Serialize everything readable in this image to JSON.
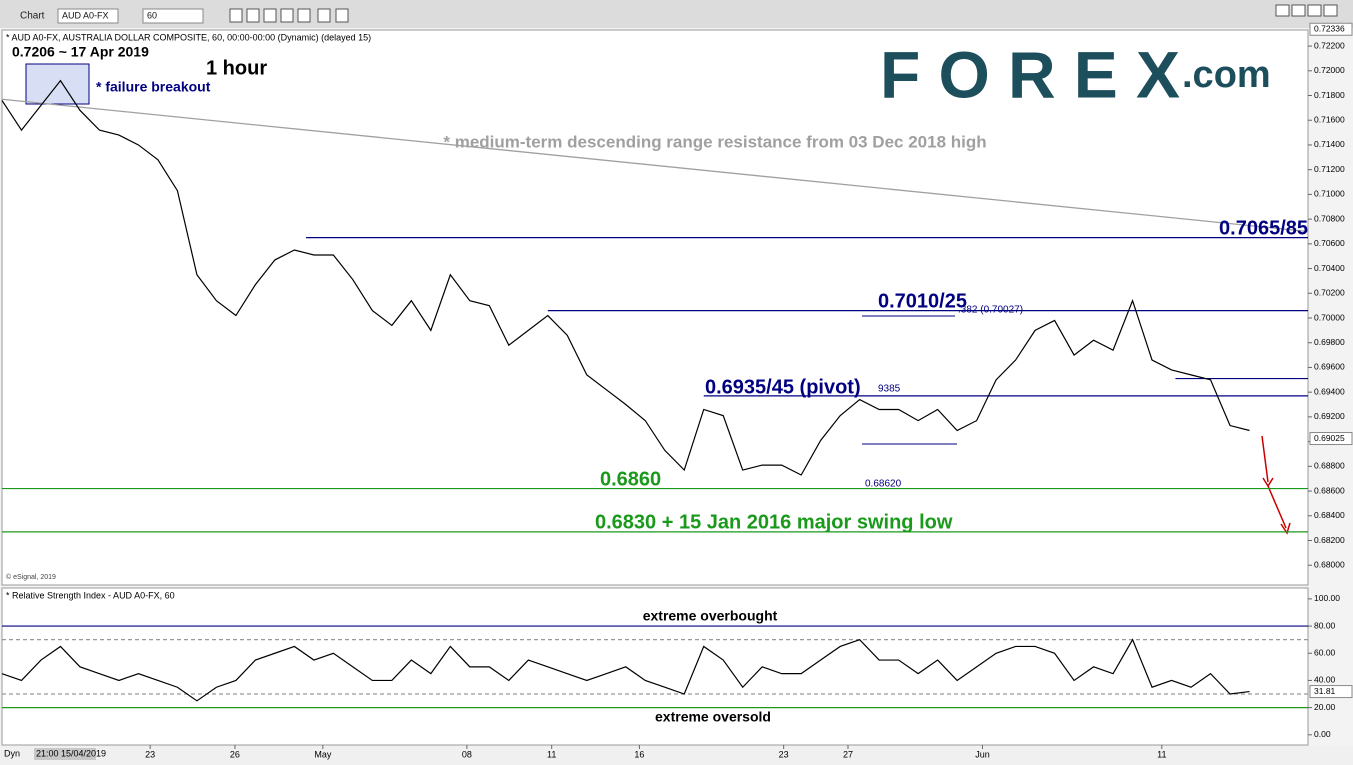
{
  "window": {
    "title": "Chart",
    "symbol": "AUD A0-FX",
    "interval": "60",
    "footer_mode": "Dyn",
    "footer_time": "21:00 15/04/2019"
  },
  "chart_data": [
    {
      "type": "line",
      "title": "* AUD A0-FX, AUSTRALIA DOLLAR COMPOSITE, 60, 00:00-00:00 (Dynamic) (delayed 15)",
      "source": "© eSignal, 2019",
      "logo": "FOREX",
      "logo_suffix": ".com",
      "annotations": [
        "0.7206 ~ 17 Apr 2019",
        "1 hour",
        "* failure breakout"
      ],
      "fib_labels": [
        ".382 (0.70027)",
        "9385",
        "0.68620"
      ],
      "series": [
        {
          "name": "AUD A0-FX",
          "color": "#000000",
          "values": [
            0.7176,
            0.7152,
            0.7172,
            0.7192,
            0.7168,
            0.7152,
            0.7148,
            0.714,
            0.7128,
            0.7103,
            0.7035,
            0.7014,
            0.7002,
            0.7027,
            0.7047,
            0.7055,
            0.7051,
            0.7051,
            0.7031,
            0.7006,
            0.6994,
            0.7014,
            0.699,
            0.7035,
            0.7014,
            0.701,
            0.6978,
            0.699,
            0.7002,
            0.6986,
            0.6954,
            0.6942,
            0.693,
            0.6917,
            0.6893,
            0.6877,
            0.6926,
            0.6921,
            0.6877,
            0.6881,
            0.6881,
            0.6873,
            0.6901,
            0.6921,
            0.6934,
            0.6926,
            0.6926,
            0.6917,
            0.6926,
            0.6909,
            0.6917,
            0.695,
            0.6966,
            0.699,
            0.6998,
            0.697,
            0.6982,
            0.6974,
            0.7014,
            0.6966,
            0.6958,
            0.6954,
            0.695,
            0.6913,
            0.6909
          ]
        }
      ],
      "trendline": {
        "values": [
          0.7177,
          0.707
        ],
        "label": "* medium-term descending range resistance from 03 Dec 2018 high",
        "color": "#a0a0a0"
      },
      "levels": [
        {
          "value": 0.7065,
          "start": 15.6,
          "label": "0.7065/85",
          "color": "#000080"
        },
        {
          "value": 0.7006,
          "start": 28,
          "label": "0.7010/25",
          "color": "#000080"
        },
        {
          "value": 0.6937,
          "start": 36,
          "label": "0.6935/45 (pivot)",
          "color": "#000080"
        },
        {
          "value": 0.6951,
          "start": 60.2,
          "color": "#000080"
        },
        {
          "value": 0.6862,
          "start": 0,
          "label": "0.6860",
          "color": "#1a9a1a"
        },
        {
          "value": 0.6827,
          "start": 0,
          "label": "0.6830 + 15 Jan 2016 major swing low",
          "color": "#1a9a1a"
        }
      ],
      "price_labels": [
        {
          "value": 0.72336,
          "label": "0.72336"
        },
        {
          "value": 0.69025,
          "label": "0.69025"
        }
      ],
      "xlim": [
        0,
        67
      ],
      "xticks": [
        {
          "value": 7.6,
          "label": "23"
        },
        {
          "value": 11.95,
          "label": "26"
        },
        {
          "value": 16.46,
          "label": "May"
        },
        {
          "value": 23.85,
          "label": "08"
        },
        {
          "value": 28.2,
          "label": "11"
        },
        {
          "value": 32.7,
          "label": "16"
        },
        {
          "value": 40.1,
          "label": "23"
        },
        {
          "value": 43.4,
          "label": "27"
        },
        {
          "value": 50.3,
          "label": "Jun"
        },
        {
          "value": 59.5,
          "label": "11"
        }
      ],
      "ylim": [
        0.6784,
        0.7233
      ],
      "yticks": [
        {
          "value": 0.68,
          "label": "0.68000"
        },
        {
          "value": 0.682,
          "label": "0.68200"
        },
        {
          "value": 0.684,
          "label": "0.68400"
        },
        {
          "value": 0.686,
          "label": "0.68600"
        },
        {
          "value": 0.688,
          "label": "0.68800"
        },
        {
          "value": 0.69,
          "label": "0.69000"
        },
        {
          "value": 0.692,
          "label": "0.69200"
        },
        {
          "value": 0.694,
          "label": "0.69400"
        },
        {
          "value": 0.696,
          "label": "0.69600"
        },
        {
          "value": 0.698,
          "label": "0.69800"
        },
        {
          "value": 0.7,
          "label": "0.70000"
        },
        {
          "value": 0.702,
          "label": "0.70200"
        },
        {
          "value": 0.704,
          "label": "0.70400"
        },
        {
          "value": 0.706,
          "label": "0.70600"
        },
        {
          "value": 0.708,
          "label": "0.70800"
        },
        {
          "value": 0.71,
          "label": "0.71000"
        },
        {
          "value": 0.712,
          "label": "0.71200"
        },
        {
          "value": 0.714,
          "label": "0.71400"
        },
        {
          "value": 0.716,
          "label": "0.71600"
        },
        {
          "value": 0.718,
          "label": "0.71800"
        },
        {
          "value": 0.72,
          "label": "0.72000"
        },
        {
          "value": 0.722,
          "label": "0.72200"
        }
      ]
    },
    {
      "type": "line",
      "title": "* Relative Strength Index - AUD A0-FX, 60",
      "annotations": [
        "extreme overbought",
        "extreme oversold"
      ],
      "series": [
        {
          "name": "RSI",
          "color": "#000000",
          "values": [
            45,
            40,
            55,
            65,
            50,
            45,
            40,
            45,
            40,
            35,
            25,
            35,
            40,
            55,
            60,
            65,
            55,
            60,
            50,
            40,
            40,
            55,
            45,
            65,
            50,
            50,
            40,
            55,
            50,
            45,
            40,
            45,
            50,
            40,
            35,
            30,
            65,
            55,
            35,
            50,
            45,
            45,
            55,
            65,
            70,
            55,
            55,
            45,
            55,
            40,
            50,
            60,
            65,
            65,
            60,
            40,
            50,
            45,
            70,
            35,
            40,
            35,
            45,
            30,
            31.81
          ]
        }
      ],
      "levels": [
        {
          "value": 80,
          "color": "#000080"
        },
        {
          "value": 70,
          "color": "#999999"
        },
        {
          "value": 30,
          "color": "#999999"
        },
        {
          "value": 20,
          "color": "#1a9a1a"
        }
      ],
      "price_labels": [
        {
          "value": 31.81,
          "label": "31.81"
        }
      ],
      "xlim": [
        0,
        67
      ],
      "ylim": [
        -7.5,
        108
      ],
      "yticks": [
        {
          "value": 0,
          "label": "0.00"
        },
        {
          "value": 20,
          "label": "20.00"
        },
        {
          "value": 40,
          "label": "40.00"
        },
        {
          "value": 60,
          "label": "60.00"
        },
        {
          "value": 80,
          "label": "80.00"
        },
        {
          "value": 100,
          "label": "100.00"
        }
      ]
    }
  ]
}
